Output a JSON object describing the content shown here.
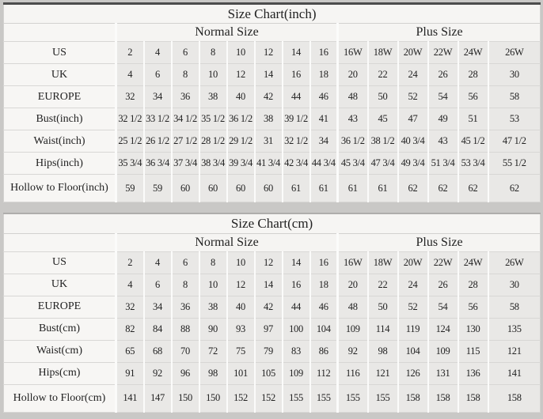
{
  "page": {
    "background": "#c9c8c6",
    "cell_bg": "#e9e8e6",
    "label_bg": "#f7f6f4",
    "header_bg": "#f5f4f2",
    "top_border_dark": "#4c4c4c"
  },
  "tables": [
    {
      "title": "Size Chart(inch)",
      "group_headers": {
        "normal": "Normal Size",
        "plus": "Plus Size"
      },
      "rows": [
        {
          "label": "US",
          "values": [
            "2",
            "4",
            "6",
            "8",
            "10",
            "12",
            "14",
            "16",
            "16W",
            "18W",
            "20W",
            "22W",
            "24W",
            "26W"
          ]
        },
        {
          "label": "UK",
          "values": [
            "4",
            "6",
            "8",
            "10",
            "12",
            "14",
            "16",
            "18",
            "20",
            "22",
            "24",
            "26",
            "28",
            "30"
          ]
        },
        {
          "label": "EUROPE",
          "values": [
            "32",
            "34",
            "36",
            "38",
            "40",
            "42",
            "44",
            "46",
            "48",
            "50",
            "52",
            "54",
            "56",
            "58"
          ]
        },
        {
          "label": "Bust(inch)",
          "values": [
            "32 1/2",
            "33 1/2",
            "34 1/2",
            "35 1/2",
            "36 1/2",
            "38",
            "39 1/2",
            "41",
            "43",
            "45",
            "47",
            "49",
            "51",
            "53"
          ]
        },
        {
          "label": "Waist(inch)",
          "values": [
            "25 1/2",
            "26 1/2",
            "27 1/2",
            "28 1/2",
            "29 1/2",
            "31",
            "32 1/2",
            "34",
            "36 1/2",
            "38 1/2",
            "40 3/4",
            "43",
            "45 1/2",
            "47 1/2"
          ]
        },
        {
          "label": "Hips(inch)",
          "values": [
            "35 3/4",
            "36 3/4",
            "37 3/4",
            "38 3/4",
            "39 3/4",
            "41 3/4",
            "42 3/4",
            "44 3/4",
            "45 3/4",
            "47 3/4",
            "49 3/4",
            "51 3/4",
            "53 3/4",
            "55 1/2"
          ]
        },
        {
          "label": "Hollow to Floor(inch)",
          "values": [
            "59",
            "59",
            "60",
            "60",
            "60",
            "60",
            "61",
            "61",
            "61",
            "61",
            "62",
            "62",
            "62",
            "62"
          ]
        }
      ]
    },
    {
      "title": "Size Chart(cm)",
      "group_headers": {
        "normal": "Normal Size",
        "plus": "Plus Size"
      },
      "rows": [
        {
          "label": "US",
          "values": [
            "2",
            "4",
            "6",
            "8",
            "10",
            "12",
            "14",
            "16",
            "16W",
            "18W",
            "20W",
            "22W",
            "24W",
            "26W"
          ]
        },
        {
          "label": "UK",
          "values": [
            "4",
            "6",
            "8",
            "10",
            "12",
            "14",
            "16",
            "18",
            "20",
            "22",
            "24",
            "26",
            "28",
            "30"
          ]
        },
        {
          "label": "EUROPE",
          "values": [
            "32",
            "34",
            "36",
            "38",
            "40",
            "42",
            "44",
            "46",
            "48",
            "50",
            "52",
            "54",
            "56",
            "58"
          ]
        },
        {
          "label": "Bust(cm)",
          "values": [
            "82",
            "84",
            "88",
            "90",
            "93",
            "97",
            "100",
            "104",
            "109",
            "114",
            "119",
            "124",
            "130",
            "135"
          ]
        },
        {
          "label": "Waist(cm)",
          "values": [
            "65",
            "68",
            "70",
            "72",
            "75",
            "79",
            "83",
            "86",
            "92",
            "98",
            "104",
            "109",
            "115",
            "121"
          ]
        },
        {
          "label": "Hips(cm)",
          "values": [
            "91",
            "92",
            "96",
            "98",
            "101",
            "105",
            "109",
            "112",
            "116",
            "121",
            "126",
            "131",
            "136",
            "141"
          ]
        },
        {
          "label": "Hollow to Floor(cm)",
          "values": [
            "141",
            "147",
            "150",
            "150",
            "152",
            "152",
            "155",
            "155",
            "155",
            "155",
            "158",
            "158",
            "158",
            "158"
          ]
        }
      ]
    }
  ]
}
